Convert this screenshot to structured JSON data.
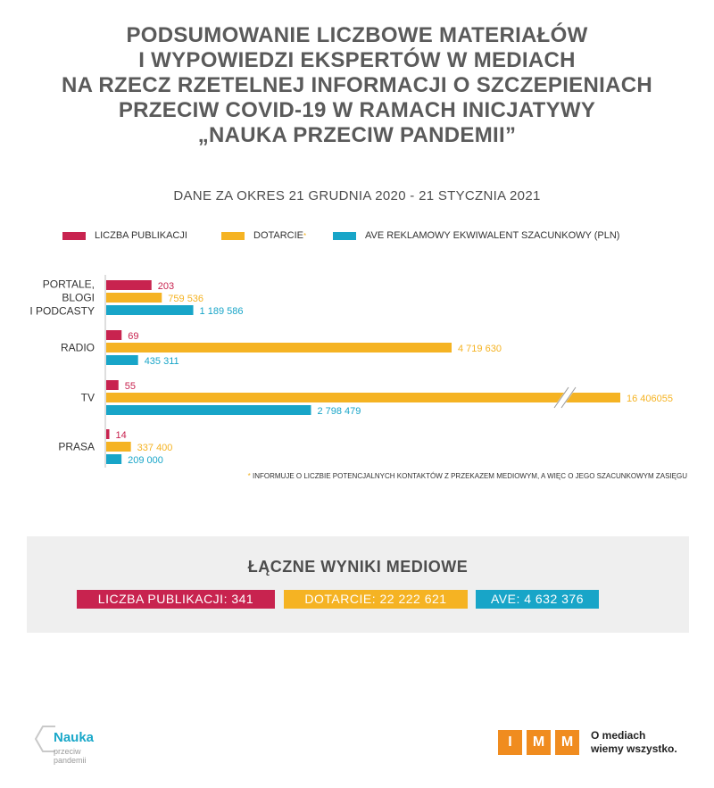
{
  "title": {
    "line1": "PODSUMOWANIE LICZBOWE MATERIAŁÓW",
    "line2": "I WYPOWIEDZI EKSPERTÓW W MEDIACH",
    "line3": "NA RZECZ RZETELNEJ INFORMACJI O SZCZEPIENIACH",
    "line4": "PRZECIW COVID-19 W RAMACH INICJATYWY",
    "line5": "„NAUKA PRZECIW PANDEMII”"
  },
  "period": "DANE ZA OKRES 21 GRUDNIA 2020 - 21 STYCZNIA 2021",
  "legend": {
    "publications": "LICZBA PUBLIKACJI",
    "reach": "DOTARCIE",
    "reach_star": "*",
    "ave": "AVE REKLAMOWY EKWIWALENT SZACUNKOWY (PLN)"
  },
  "colors": {
    "publications": "#c8234f",
    "reach": "#f5b323",
    "ave": "#18a5c8",
    "axis": "#bdbdbd",
    "summary_bg": "#efefef"
  },
  "chart_data": {
    "type": "bar",
    "orientation": "horizontal",
    "axis_break": "TV reach bar is truncated with a break mark",
    "categories": [
      "PORTALE, BLOGI I PODCASTY",
      "RADIO",
      "TV",
      "PRASA"
    ],
    "category_lines": [
      [
        "PORTALE,",
        "BLOGI",
        "I PODCASTY"
      ],
      [
        "RADIO"
      ],
      [
        "TV"
      ],
      [
        "PRASA"
      ]
    ],
    "series": [
      {
        "name": "LICZBA PUBLIKACJI",
        "values": [
          203,
          69,
          55,
          14
        ],
        "labels": [
          "203",
          "69",
          "55",
          "14"
        ]
      },
      {
        "name": "DOTARCIE*",
        "values": [
          759536,
          4719630,
          16406055,
          337400
        ],
        "labels": [
          "759 536",
          "4 719  630",
          "16  406055",
          "337 400"
        ]
      },
      {
        "name": "AVE REKLAMOWY EKWIWALENT SZACUNKOWY (PLN)",
        "values": [
          1189586,
          435311,
          2798479,
          209000
        ],
        "labels": [
          "1 189 586",
          "435 311",
          "2 798 479",
          "209 000"
        ]
      }
    ]
  },
  "footnote": {
    "star": "*",
    "text": " INFORMUJE O LICZBIE POTENCJALNYCH KONTAKTÓW Z PRZEKAZEM MEDIOWYM, A WIĘC O JEGO SZACUNKOWYM ZASIĘGU"
  },
  "summary": {
    "title": "ŁĄCZNE WYNIKI MEDIOWE",
    "publications": "LICZBA PUBLIKACJI: 341",
    "reach": "DOTARCIE: 22 222 621",
    "ave": "AVE: 4 632 376"
  },
  "logo_left": {
    "name": "Nauka",
    "sub1": "przeciw",
    "sub2": "pandemii"
  },
  "logo_right": {
    "letters": [
      "I",
      "M",
      "M"
    ],
    "tagline1": "O mediach",
    "tagline2": "wiemy wszystko."
  }
}
